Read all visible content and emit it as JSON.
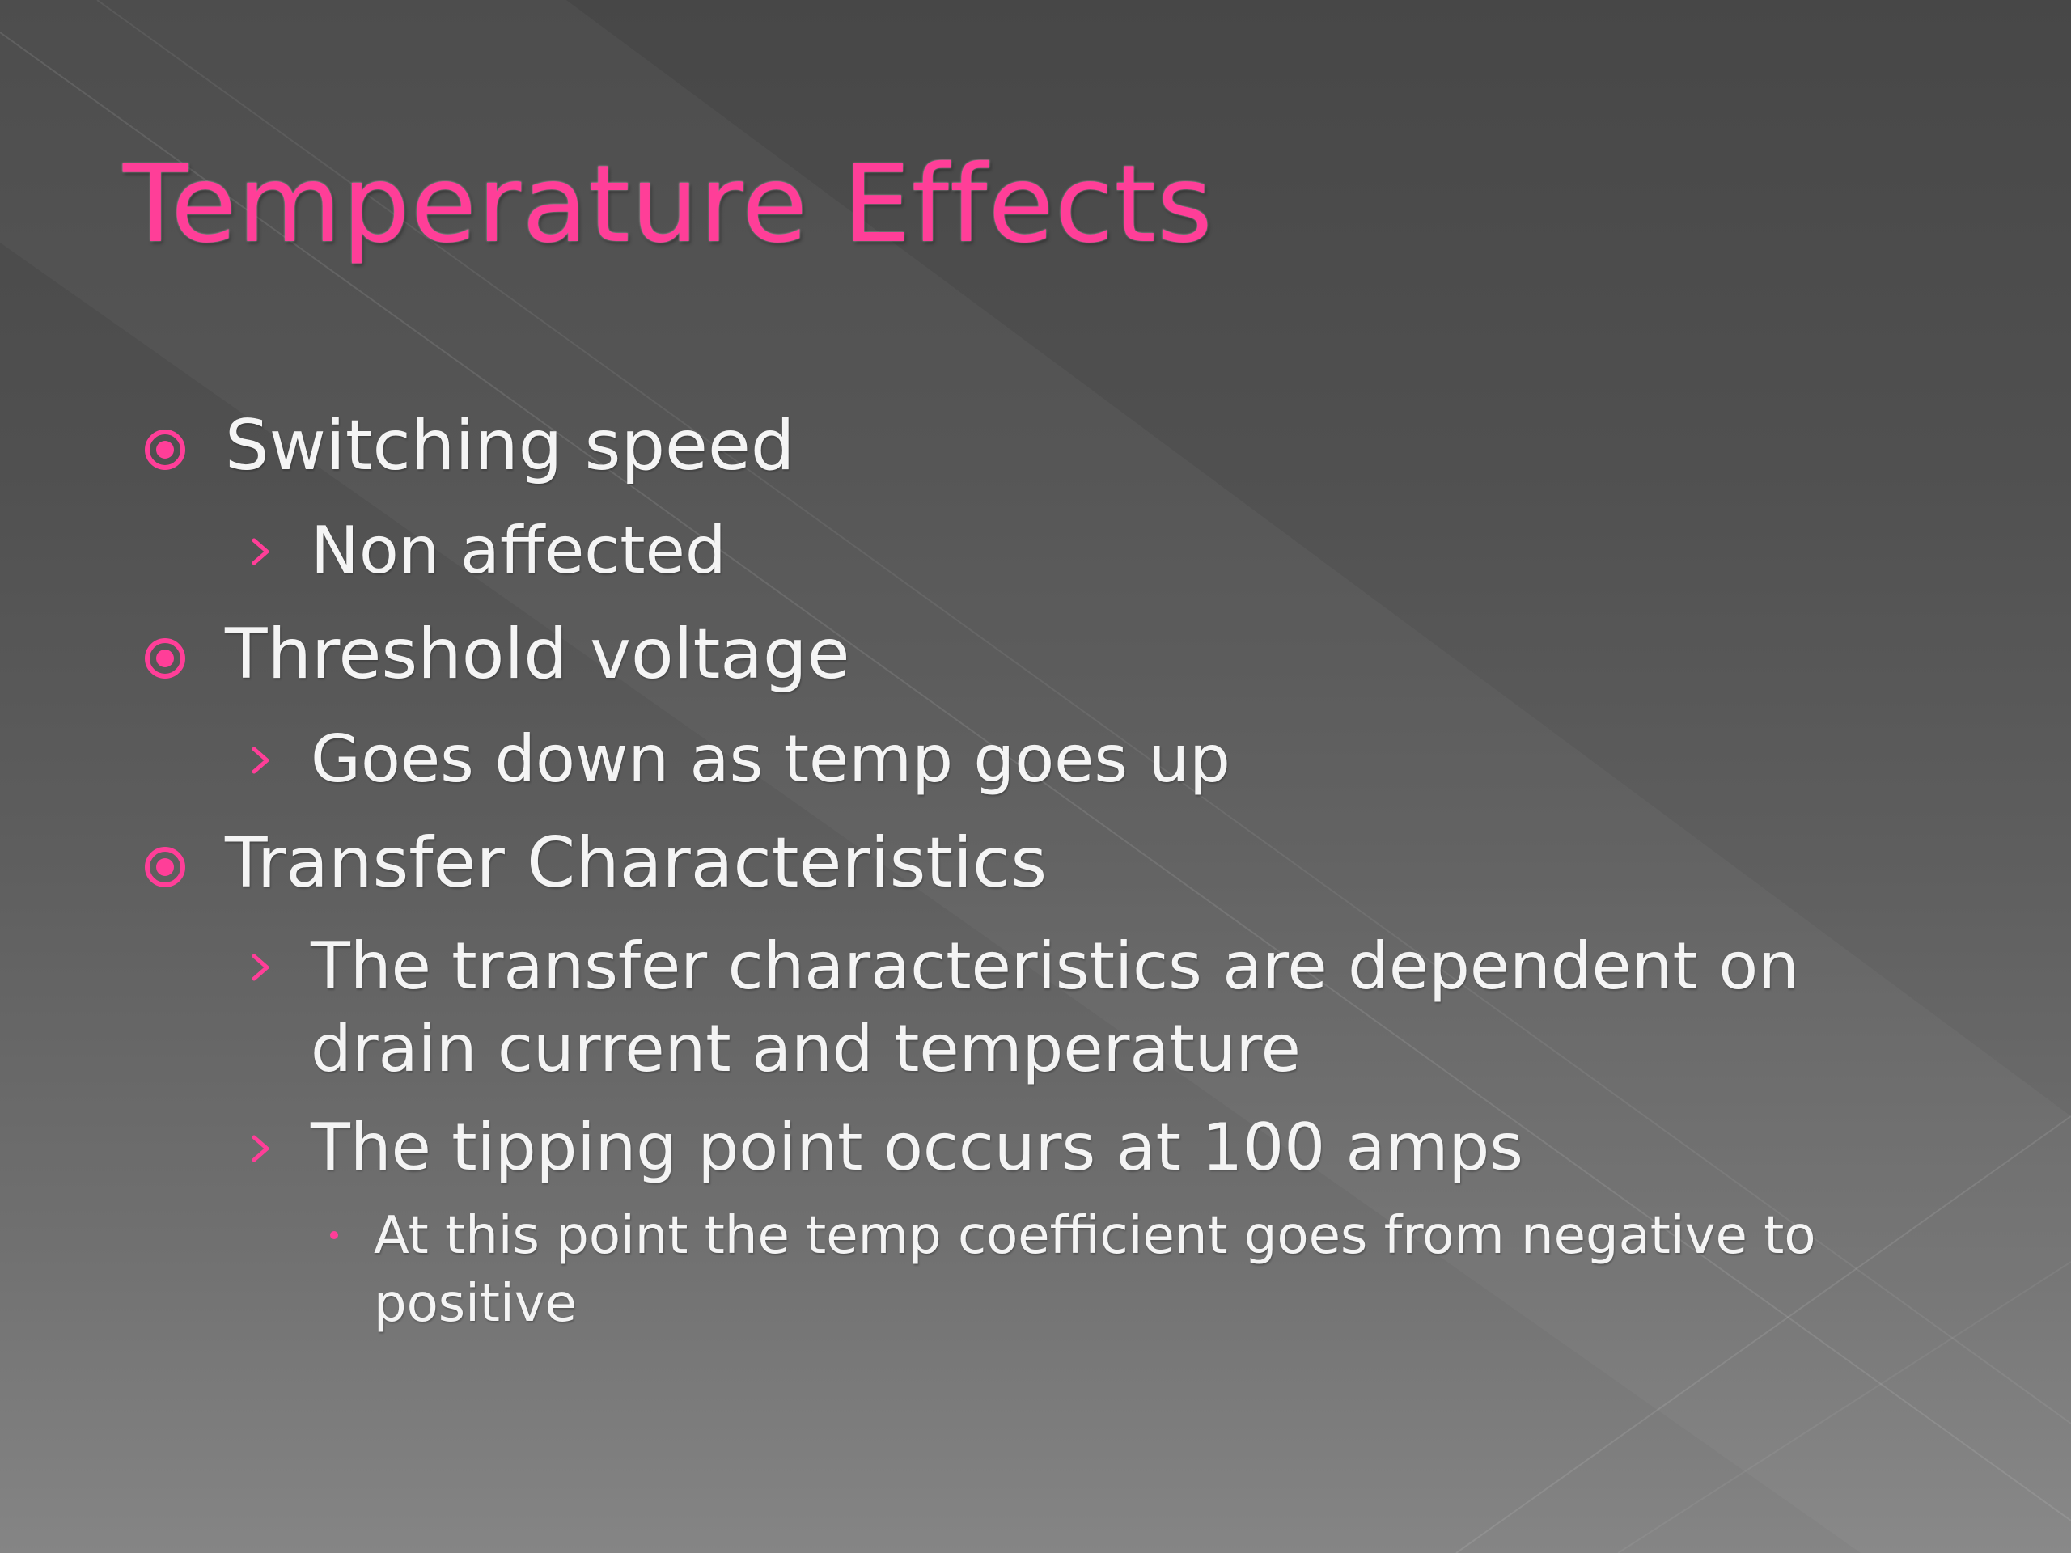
{
  "slide": {
    "title": "Temperature Effects",
    "items": [
      {
        "level": 1,
        "text": "Switching speed"
      },
      {
        "level": 2,
        "text": "Non affected"
      },
      {
        "level": 1,
        "text": "Threshold voltage"
      },
      {
        "level": 2,
        "text": "Goes down as temp goes up"
      },
      {
        "level": 1,
        "text": "Transfer Characteristics"
      },
      {
        "level": 2,
        "lines": [
          "The transfer characteristics are dependent on",
          "drain current and temperature"
        ]
      },
      {
        "level": 2,
        "text": "The tipping point occurs at 100 amps"
      },
      {
        "level": 3,
        "lines": [
          "At this point the temp coefficient goes from negative to",
          "positive"
        ]
      }
    ]
  },
  "colors": {
    "accent": "#ff3e98",
    "text": "#f4f4f4",
    "background_top": "#474747",
    "background_bottom": "#858585"
  },
  "icons": {
    "level1_bullet": "target-bullet-icon",
    "level2_bullet": "chevron-right-icon",
    "level3_bullet": "dot-bullet-icon"
  }
}
